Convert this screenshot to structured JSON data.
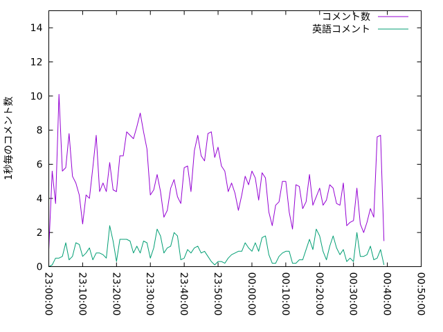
{
  "chart_data": {
    "type": "line",
    "title": "",
    "xlabel": "",
    "ylabel": "1秒毎のコメント数",
    "ylim": [
      0,
      15
    ],
    "yticks": [
      0,
      2,
      4,
      6,
      8,
      10,
      12,
      14
    ],
    "xlim_minutes": [
      0,
      110
    ],
    "xtick_labels": [
      "23:00:00",
      "23:10:00",
      "23:20:00",
      "23:30:00",
      "23:40:00",
      "23:50:00",
      "00:00:00",
      "00:10:00",
      "00:20:00",
      "00:30:00",
      "00:40:00",
      "00:50:00"
    ],
    "legend_position": "top-right",
    "grid": false,
    "series": [
      {
        "name": "コメント数",
        "color": "#9400d3",
        "points": [
          [
            0,
            1
          ],
          [
            1,
            5.6
          ],
          [
            2,
            3.7
          ],
          [
            3,
            10.1
          ],
          [
            4,
            5.6
          ],
          [
            5,
            5.8
          ],
          [
            6,
            7.8
          ],
          [
            7,
            5.3
          ],
          [
            8,
            4.9
          ],
          [
            9,
            4.2
          ],
          [
            10,
            2.5
          ],
          [
            11,
            4.2
          ],
          [
            12,
            4
          ],
          [
            13,
            5.8
          ],
          [
            14,
            7.7
          ],
          [
            15,
            4.4
          ],
          [
            16,
            4.9
          ],
          [
            17,
            4.4
          ],
          [
            18,
            6.1
          ],
          [
            19,
            4.5
          ],
          [
            20,
            4.4
          ],
          [
            21,
            6.5
          ],
          [
            22,
            6.5
          ],
          [
            23,
            7.9
          ],
          [
            24,
            7.7
          ],
          [
            25,
            7.5
          ],
          [
            26,
            8.2
          ],
          [
            27,
            9
          ],
          [
            28,
            7.9
          ],
          [
            29,
            6.9
          ],
          [
            30,
            4.2
          ],
          [
            31,
            4.5
          ],
          [
            32,
            5.4
          ],
          [
            33,
            4.4
          ],
          [
            34,
            2.9
          ],
          [
            35,
            3.3
          ],
          [
            36,
            4.6
          ],
          [
            37,
            5.1
          ],
          [
            38,
            4.1
          ],
          [
            39,
            3.7
          ],
          [
            40,
            5.8
          ],
          [
            41,
            5.9
          ],
          [
            42,
            4.4
          ],
          [
            43,
            6.8
          ],
          [
            44,
            7.7
          ],
          [
            45,
            6.5
          ],
          [
            46,
            6.2
          ],
          [
            47,
            7.8
          ],
          [
            48,
            7.9
          ],
          [
            49,
            6.4
          ],
          [
            50,
            7
          ],
          [
            51,
            5.9
          ],
          [
            52,
            5.6
          ],
          [
            53,
            4.4
          ],
          [
            54,
            4.9
          ],
          [
            55,
            4.3
          ],
          [
            56,
            3.3
          ],
          [
            57,
            4.2
          ],
          [
            58,
            5.3
          ],
          [
            59,
            4.8
          ],
          [
            60,
            5.6
          ],
          [
            61,
            5.2
          ],
          [
            62,
            3.9
          ],
          [
            63,
            5.5
          ],
          [
            64,
            5.2
          ],
          [
            65,
            3.2
          ],
          [
            66,
            2.4
          ],
          [
            67,
            3.6
          ],
          [
            68,
            3.8
          ],
          [
            69,
            5
          ],
          [
            70,
            5
          ],
          [
            71,
            3.2
          ],
          [
            72,
            2.2
          ],
          [
            73,
            4.8
          ],
          [
            74,
            4.7
          ],
          [
            75,
            3.4
          ],
          [
            76,
            3.8
          ],
          [
            77,
            5.4
          ],
          [
            78,
            3.6
          ],
          [
            79,
            4.1
          ],
          [
            80,
            4.6
          ],
          [
            81,
            3.6
          ],
          [
            82,
            3.9
          ],
          [
            83,
            4.8
          ],
          [
            84,
            4.6
          ],
          [
            85,
            3.7
          ],
          [
            86,
            3.6
          ],
          [
            87,
            4.9
          ],
          [
            88,
            2.4
          ],
          [
            89,
            2.6
          ],
          [
            90,
            2.7
          ],
          [
            91,
            4.6
          ],
          [
            92,
            2.5
          ],
          [
            93,
            2
          ],
          [
            94,
            2.6
          ],
          [
            95,
            3.4
          ],
          [
            96,
            2.9
          ],
          [
            97,
            7.6
          ],
          [
            98,
            7.7
          ],
          [
            99,
            1.5
          ]
        ]
      },
      {
        "name": "英語コメント",
        "color": "#009e73",
        "points": [
          [
            0,
            0
          ],
          [
            1,
            0.1
          ],
          [
            2,
            0.5
          ],
          [
            3,
            0.5
          ],
          [
            4,
            0.6
          ],
          [
            5,
            1.4
          ],
          [
            6,
            0.4
          ],
          [
            7,
            0.6
          ],
          [
            8,
            1.4
          ],
          [
            9,
            1.3
          ],
          [
            10,
            0.6
          ],
          [
            11,
            0.8
          ],
          [
            12,
            1.1
          ],
          [
            13,
            0.4
          ],
          [
            14,
            0.8
          ],
          [
            15,
            0.8
          ],
          [
            16,
            0.7
          ],
          [
            17,
            0.5
          ],
          [
            18,
            2.4
          ],
          [
            19,
            1.5
          ],
          [
            20,
            0.3
          ],
          [
            21,
            1.6
          ],
          [
            22,
            1.6
          ],
          [
            23,
            1.6
          ],
          [
            24,
            1.5
          ],
          [
            25,
            0.8
          ],
          [
            26,
            1.2
          ],
          [
            27,
            0.8
          ],
          [
            28,
            1.5
          ],
          [
            29,
            1.4
          ],
          [
            30,
            0.5
          ],
          [
            31,
            1.1
          ],
          [
            32,
            2.2
          ],
          [
            33,
            1.8
          ],
          [
            34,
            0.8
          ],
          [
            35,
            1.1
          ],
          [
            36,
            1.2
          ],
          [
            37,
            2
          ],
          [
            38,
            1.8
          ],
          [
            39,
            0.4
          ],
          [
            40,
            0.5
          ],
          [
            41,
            1
          ],
          [
            42,
            0.8
          ],
          [
            43,
            1.1
          ],
          [
            44,
            1.2
          ],
          [
            45,
            0.8
          ],
          [
            46,
            0.9
          ],
          [
            47,
            0.6
          ],
          [
            48,
            0.3
          ],
          [
            49,
            0.1
          ],
          [
            50,
            0.3
          ],
          [
            51,
            0.3
          ],
          [
            52,
            0.2
          ],
          [
            53,
            0.5
          ],
          [
            54,
            0.7
          ],
          [
            55,
            0.8
          ],
          [
            56,
            0.9
          ],
          [
            57,
            0.9
          ],
          [
            58,
            1.4
          ],
          [
            59,
            1.1
          ],
          [
            60,
            0.9
          ],
          [
            61,
            1.4
          ],
          [
            62,
            0.9
          ],
          [
            63,
            1.7
          ],
          [
            64,
            1.8
          ],
          [
            65,
            0.7
          ],
          [
            66,
            0.2
          ],
          [
            67,
            0.2
          ],
          [
            68,
            0.6
          ],
          [
            69,
            0.8
          ],
          [
            70,
            0.9
          ],
          [
            71,
            0.9
          ],
          [
            72,
            0.2
          ],
          [
            73,
            0.2
          ],
          [
            74,
            0.4
          ],
          [
            75,
            0.4
          ],
          [
            76,
            1
          ],
          [
            77,
            1.6
          ],
          [
            78,
            1
          ],
          [
            79,
            2.2
          ],
          [
            80,
            1.8
          ],
          [
            81,
            0.9
          ],
          [
            82,
            0.4
          ],
          [
            83,
            1.2
          ],
          [
            84,
            1.8
          ],
          [
            85,
            1.1
          ],
          [
            86,
            0.7
          ],
          [
            87,
            1
          ],
          [
            88,
            0.3
          ],
          [
            89,
            0.5
          ],
          [
            90,
            0.3
          ],
          [
            91,
            2
          ],
          [
            92,
            0.6
          ],
          [
            93,
            0.6
          ],
          [
            94,
            0.7
          ],
          [
            95,
            1.2
          ],
          [
            96,
            0.4
          ],
          [
            97,
            0.5
          ],
          [
            98,
            1
          ],
          [
            99,
            0.1
          ]
        ]
      }
    ]
  }
}
